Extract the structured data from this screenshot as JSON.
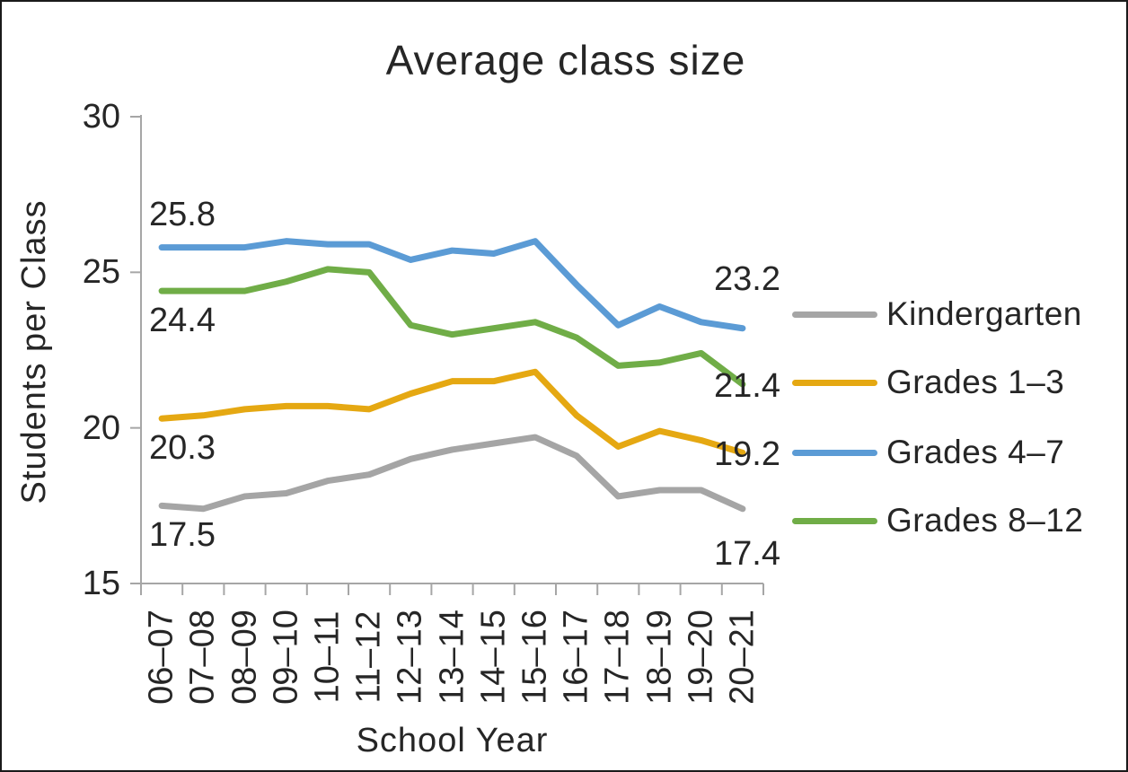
{
  "chart_data": {
    "type": "line",
    "title": "Average class size",
    "xlabel": "School Year",
    "ylabel": "Students per Class",
    "ylim": [
      15,
      30
    ],
    "y_ticks": [
      30,
      25,
      20,
      15
    ],
    "grid": false,
    "legend_position": "right",
    "axis_color": "#A6A6A6",
    "text_color": "#262626",
    "categories": [
      "06–07",
      "07–08",
      "08–09",
      "09–10",
      "10–11",
      "11–12",
      "12–13",
      "13–14",
      "14–15",
      "15–16",
      "16–17",
      "17–18",
      "18–19",
      "19–20",
      "20–21"
    ],
    "series": [
      {
        "name": "Kindergarten",
        "color": "#A5A5A5",
        "values": [
          17.5,
          17.4,
          17.8,
          17.9,
          18.3,
          18.5,
          19.0,
          19.3,
          19.5,
          19.7,
          19.1,
          17.8,
          18.0,
          18.0,
          17.4
        ]
      },
      {
        "name": "Grades 1–3",
        "color": "#E5A812",
        "values": [
          20.3,
          20.4,
          20.6,
          20.7,
          20.7,
          20.6,
          21.1,
          21.5,
          21.5,
          21.8,
          20.4,
          19.4,
          19.9,
          19.6,
          19.2
        ]
      },
      {
        "name": "Grades 4–7",
        "color": "#5B9BD5",
        "values": [
          25.8,
          25.8,
          25.8,
          26.0,
          25.9,
          25.9,
          25.4,
          25.7,
          25.6,
          26.0,
          24.6,
          23.3,
          23.9,
          23.4,
          23.2
        ]
      },
      {
        "name": "Grades 8–12",
        "color": "#70AD47",
        "values": [
          24.4,
          24.4,
          24.4,
          24.7,
          25.1,
          25.0,
          23.3,
          23.0,
          23.2,
          23.4,
          22.9,
          22.0,
          22.1,
          22.4,
          21.4
        ]
      }
    ],
    "data_labels": [
      {
        "text": "25.8",
        "series": "Grades 4–7",
        "point": "first",
        "placement": "above-first"
      },
      {
        "text": "24.4",
        "series": "Grades 8–12",
        "point": "first",
        "placement": "below-first"
      },
      {
        "text": "20.3",
        "series": "Grades 1–3",
        "point": "first",
        "placement": "below-first"
      },
      {
        "text": "17.5",
        "series": "Kindergarten",
        "point": "first",
        "placement": "below-first"
      },
      {
        "text": "23.2",
        "series": "Grades 4–7",
        "point": "last",
        "placement": "above-last"
      },
      {
        "text": "21.4",
        "series": "Grades 8–12",
        "point": "last",
        "placement": "beside-last"
      },
      {
        "text": "19.2",
        "series": "Grades 1–3",
        "point": "last",
        "placement": "beside-last"
      },
      {
        "text": "17.4",
        "series": "Kindergarten",
        "point": "last",
        "placement": "below-last"
      }
    ]
  }
}
